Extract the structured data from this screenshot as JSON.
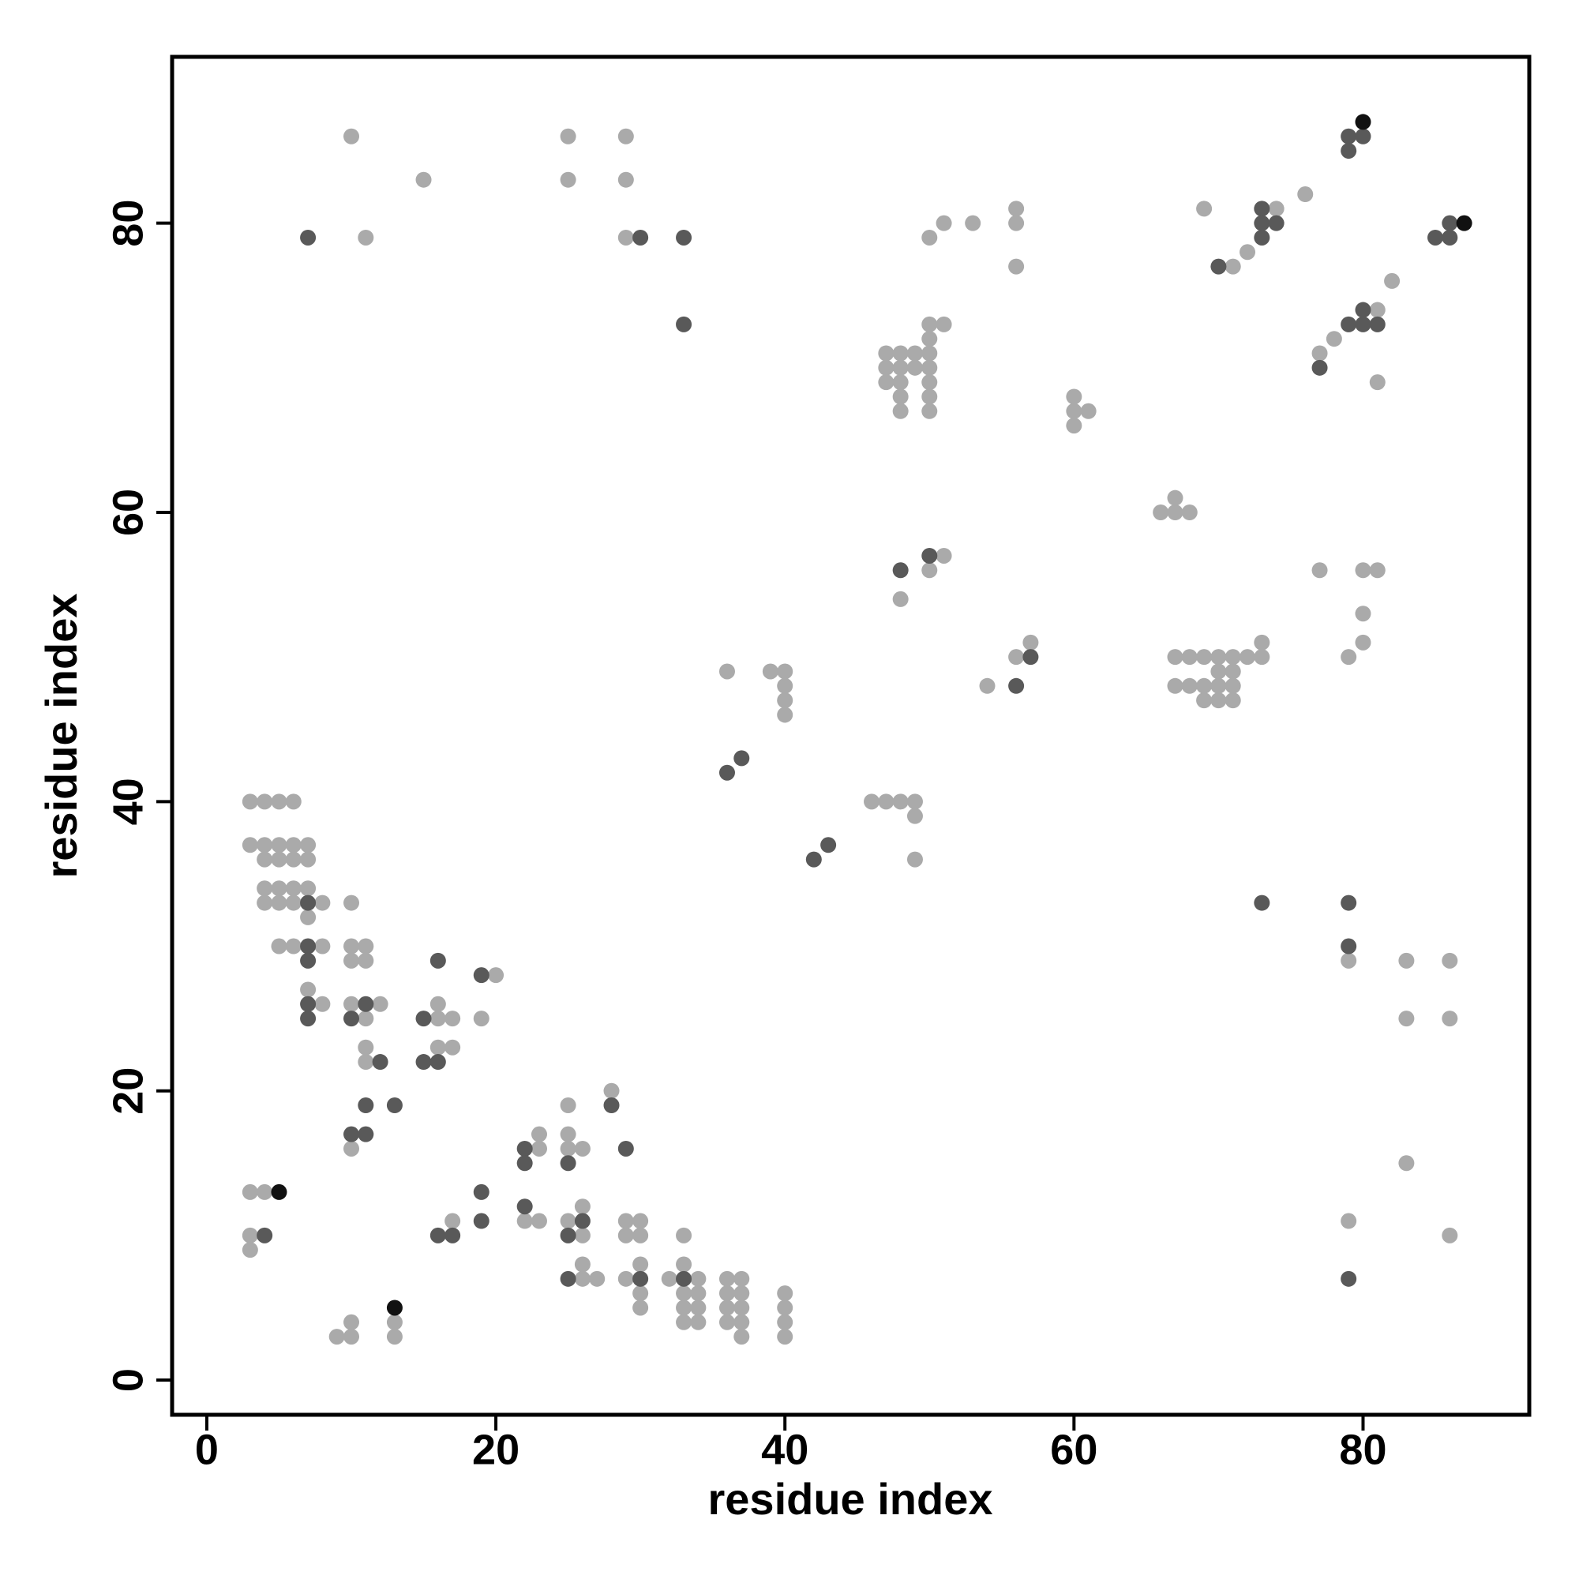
{
  "chart_data": {
    "type": "scatter",
    "xlabel": "residue index",
    "ylabel": "residue index",
    "xlim": [
      -2.4,
      91.5
    ],
    "ylim": [
      -2.4,
      91.5
    ],
    "xticks": [
      0,
      20,
      40,
      60,
      80
    ],
    "yticks": [
      0,
      20,
      40,
      60,
      80
    ],
    "series": [
      {
        "color": "#aaaaaa",
        "x": [
          10,
          15,
          11,
          25,
          25,
          29,
          29,
          29,
          50,
          51,
          53,
          56,
          56,
          56,
          50,
          51,
          50,
          47,
          48,
          49,
          50,
          47,
          48,
          49,
          50,
          47,
          48,
          50,
          48,
          50,
          48,
          50,
          60,
          60,
          61,
          60,
          66,
          67,
          67,
          68,
          48,
          51,
          50,
          56,
          57,
          54,
          36,
          39,
          40,
          40,
          40,
          40,
          46,
          47,
          48,
          49,
          49,
          49,
          73,
          67,
          68,
          69,
          70,
          71,
          72,
          73,
          70,
          71,
          67,
          68,
          69,
          70,
          71,
          69,
          70,
          71,
          69,
          71,
          72,
          74,
          76,
          82,
          78,
          77,
          81,
          81,
          77,
          80,
          81,
          80,
          80,
          79,
          79,
          83,
          86,
          83,
          86,
          83,
          79,
          86,
          3,
          4,
          5,
          6,
          3,
          4,
          5,
          6,
          7,
          4,
          5,
          6,
          7,
          4,
          5,
          6,
          7,
          4,
          5,
          6,
          8,
          7,
          5,
          6,
          8,
          7,
          8,
          10,
          10,
          11,
          10,
          11,
          10,
          12,
          11,
          11,
          11,
          10,
          16,
          17,
          16,
          16,
          17,
          20,
          19,
          3,
          4,
          3,
          3,
          13,
          13,
          10,
          9,
          10,
          17,
          23,
          23,
          25,
          25,
          25,
          26,
          28,
          22,
          23,
          25,
          26,
          26,
          26,
          26,
          27,
          29,
          30,
          29,
          30,
          30,
          29,
          30,
          30,
          33,
          33,
          32,
          34,
          33,
          34,
          33,
          34,
          33,
          34,
          36,
          37,
          36,
          37,
          36,
          37,
          36,
          37,
          37,
          40,
          40,
          40,
          40
        ],
        "y": [
          86,
          83,
          79,
          86,
          83,
          86,
          83,
          79,
          79,
          80,
          80,
          81,
          80,
          77,
          73,
          73,
          72,
          71,
          71,
          71,
          71,
          70,
          70,
          70,
          70,
          69,
          69,
          69,
          68,
          68,
          67,
          67,
          68,
          67,
          67,
          66,
          60,
          61,
          60,
          60,
          54,
          57,
          56,
          50,
          51,
          48,
          49,
          49,
          49,
          48,
          47,
          46,
          40,
          40,
          40,
          40,
          39,
          36,
          51,
          50,
          50,
          50,
          50,
          50,
          50,
          50,
          49,
          49,
          48,
          48,
          48,
          48,
          48,
          47,
          47,
          47,
          81,
          77,
          78,
          81,
          82,
          76,
          72,
          71,
          74,
          69,
          56,
          56,
          56,
          53,
          51,
          50,
          29,
          29,
          29,
          25,
          25,
          15,
          11,
          10,
          40,
          40,
          40,
          40,
          37,
          37,
          37,
          37,
          37,
          36,
          36,
          36,
          36,
          34,
          34,
          34,
          34,
          33,
          33,
          33,
          33,
          32,
          30,
          30,
          30,
          27,
          26,
          33,
          30,
          30,
          29,
          29,
          26,
          26,
          25,
          23,
          22,
          16,
          25,
          25,
          26,
          23,
          23,
          28,
          25,
          13,
          13,
          10,
          9,
          4,
          3,
          4,
          3,
          3,
          11,
          16,
          17,
          19,
          17,
          16,
          16,
          20,
          11,
          11,
          11,
          12,
          10,
          8,
          7,
          7,
          11,
          11,
          10,
          10,
          8,
          7,
          6,
          5,
          10,
          8,
          7,
          7,
          6,
          6,
          5,
          5,
          4,
          4,
          7,
          7,
          6,
          6,
          5,
          5,
          4,
          4,
          3,
          6,
          5,
          4,
          3
        ]
      },
      {
        "color": "#595959",
        "x": [
          7,
          30,
          33,
          33,
          48,
          50,
          57,
          56,
          36,
          37,
          42,
          43,
          73,
          70,
          73,
          73,
          74,
          73,
          79,
          79,
          80,
          85,
          86,
          86,
          77,
          79,
          80,
          80,
          81,
          79,
          79,
          79,
          7,
          7,
          7,
          7,
          7,
          11,
          10,
          12,
          11,
          13,
          10,
          11,
          15,
          16,
          15,
          16,
          19,
          4,
          16,
          17,
          19,
          19,
          22,
          22,
          25,
          28,
          29,
          22,
          26,
          25,
          25,
          30,
          33
        ],
        "y": [
          79,
          79,
          79,
          73,
          56,
          57,
          50,
          48,
          42,
          43,
          36,
          37,
          33,
          77,
          81,
          80,
          80,
          79,
          86,
          85,
          86,
          79,
          80,
          79,
          70,
          73,
          74,
          73,
          73,
          33,
          30,
          7,
          33,
          30,
          29,
          26,
          25,
          26,
          25,
          22,
          19,
          19,
          17,
          17,
          25,
          29,
          22,
          22,
          28,
          10,
          10,
          10,
          13,
          11,
          16,
          15,
          15,
          19,
          16,
          12,
          11,
          10,
          7,
          7,
          7
        ]
      },
      {
        "color": "#111111",
        "x": [
          80,
          87,
          5,
          13
        ],
        "y": [
          87,
          80,
          13,
          5
        ]
      }
    ]
  }
}
